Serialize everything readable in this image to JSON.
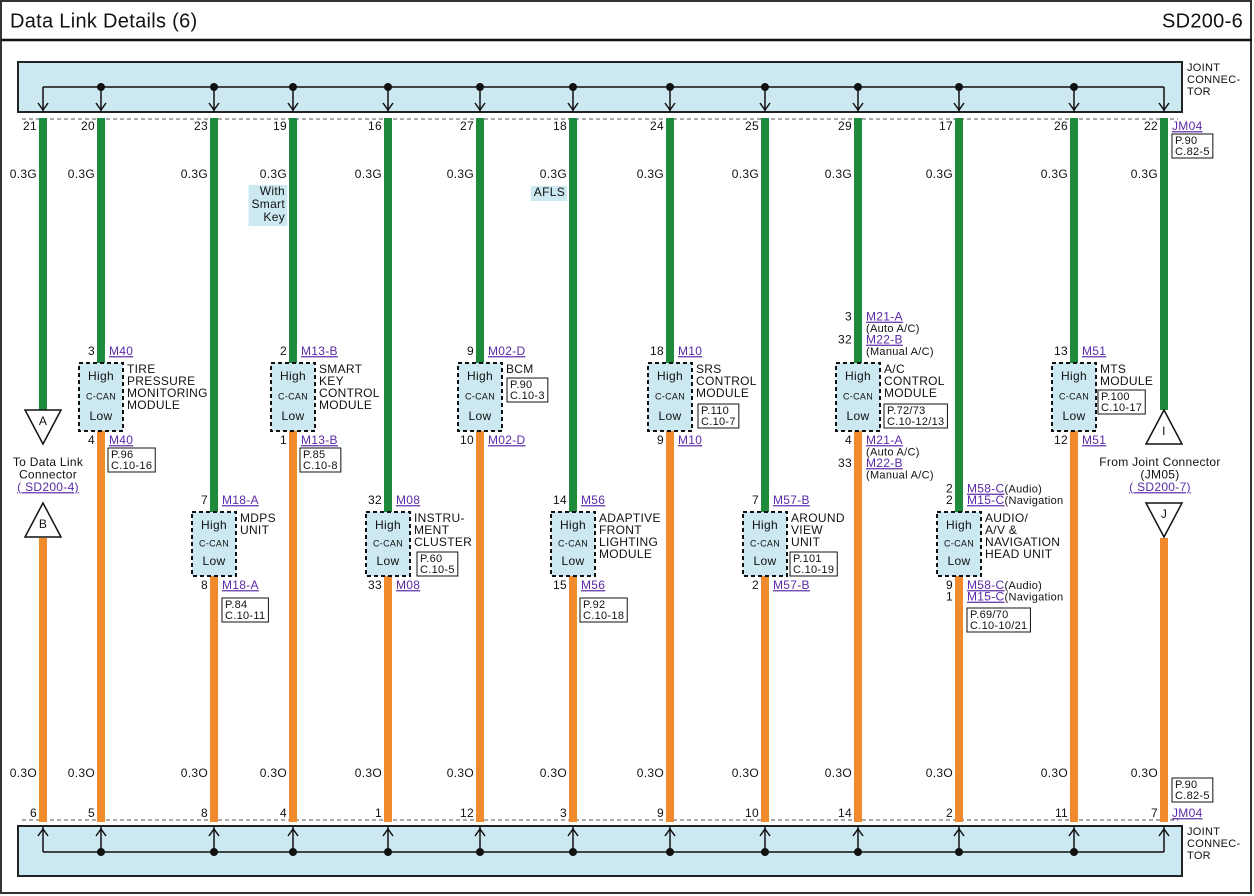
{
  "header": {
    "title": "Data Link Details (6)",
    "code": "SD200-6"
  },
  "joint_connector": {
    "top_label": [
      "JOINT",
      "CONNEC-",
      "TOR"
    ],
    "bottom_label": [
      "JOINT",
      "CONNEC-",
      "TOR"
    ]
  },
  "module_labels": {
    "high": "High",
    "can": "C-CAN",
    "low": "Low"
  },
  "columns": [
    {
      "top_pin": "21",
      "top_wire": "0.3G",
      "bottom_wire": "0.3O",
      "bottom_pin": "6",
      "end_top": {
        "letter": "A",
        "text": [
          "To Data Link",
          "Connector"
        ],
        "ref": "( SD200-4)"
      },
      "end_bottom": {
        "letter": "B"
      }
    },
    {
      "top_pin": "20",
      "top_wire": "0.3G",
      "bottom_wire": "0.3O",
      "bottom_pin": "5",
      "module": {
        "high": [
          {
            "pin": "3",
            "conn": "M40"
          }
        ],
        "low": [
          {
            "pin": "4",
            "conn": "M40"
          }
        ],
        "name": [
          "TIRE",
          "PRESSURE",
          "MONITORING",
          "MODULE"
        ],
        "ref": [
          "P.96",
          "C.10-16"
        ]
      }
    },
    {
      "top_pin": "23",
      "top_wire": "0.3G",
      "bottom_wire": "0.3O",
      "bottom_pin": "8",
      "module": {
        "high": [
          {
            "pin": "7",
            "conn": "M18-A"
          }
        ],
        "low": [
          {
            "pin": "8",
            "conn": "M18-A"
          }
        ],
        "name": [
          "MDPS",
          "UNIT"
        ],
        "ref": [
          "P.84",
          "C.10-11"
        ]
      }
    },
    {
      "top_pin": "19",
      "top_wire": "0.3G",
      "bottom_wire": "0.3O",
      "bottom_pin": "4",
      "note": [
        "With",
        "Smart",
        "Key"
      ],
      "module": {
        "high": [
          {
            "pin": "2",
            "conn": "M13-B"
          }
        ],
        "low": [
          {
            "pin": "1",
            "conn": "M13-B"
          }
        ],
        "name": [
          "SMART",
          "KEY",
          "CONTROL",
          "MODULE"
        ],
        "ref": [
          "P.85",
          "C.10-8"
        ]
      }
    },
    {
      "top_pin": "16",
      "top_wire": "0.3G",
      "bottom_wire": "0.3O",
      "bottom_pin": "1",
      "module": {
        "high": [
          {
            "pin": "32",
            "conn": "M08"
          }
        ],
        "low": [
          {
            "pin": "33",
            "conn": "M08"
          }
        ],
        "name": [
          "INSTRU-",
          "MENT",
          "CLUSTER"
        ],
        "ref": [
          "P.60",
          "C.10-5"
        ]
      }
    },
    {
      "top_pin": "27",
      "top_wire": "0.3G",
      "bottom_wire": "0.3O",
      "bottom_pin": "12",
      "module": {
        "high": [
          {
            "pin": "9",
            "conn": "M02-D"
          }
        ],
        "low": [
          {
            "pin": "10",
            "conn": "M02-D"
          }
        ],
        "name": [
          "BCM"
        ],
        "ref": [
          "P.90",
          "C.10-3"
        ]
      }
    },
    {
      "top_pin": "18",
      "top_wire": "0.3G",
      "bottom_wire": "0.3O",
      "bottom_pin": "3",
      "note": [
        "AFLS"
      ],
      "module": {
        "high": [
          {
            "pin": "14",
            "conn": "M56"
          }
        ],
        "low": [
          {
            "pin": "15",
            "conn": "M56"
          }
        ],
        "name": [
          "ADAPTIVE",
          "FRONT",
          "LIGHTING",
          "MODULE"
        ],
        "ref": [
          "P.92",
          "C.10-18"
        ]
      }
    },
    {
      "top_pin": "24",
      "top_wire": "0.3G",
      "bottom_wire": "0.3O",
      "bottom_pin": "9",
      "module": {
        "high": [
          {
            "pin": "18",
            "conn": "M10"
          }
        ],
        "low": [
          {
            "pin": "9",
            "conn": "M10"
          }
        ],
        "name": [
          "SRS",
          "CONTROL",
          "MODULE"
        ],
        "ref": [
          "P.110",
          "C.10-7"
        ]
      }
    },
    {
      "top_pin": "25",
      "top_wire": "0.3G",
      "bottom_wire": "0.3O",
      "bottom_pin": "10",
      "module": {
        "high": [
          {
            "pin": "7",
            "conn": "M57-B"
          }
        ],
        "low": [
          {
            "pin": "2",
            "conn": "M57-B"
          }
        ],
        "name": [
          "AROUND",
          "VIEW",
          "UNIT"
        ],
        "ref": [
          "P.101",
          "C.10-19"
        ]
      }
    },
    {
      "top_pin": "29",
      "top_wire": "0.3G",
      "bottom_wire": "0.3O",
      "bottom_pin": "14",
      "module": {
        "high": [
          {
            "pin": "3",
            "conn": "M21-A",
            "note": "(Auto A/C)"
          },
          {
            "pin": "32",
            "conn": "M22-B",
            "note": "(Manual A/C)"
          }
        ],
        "low": [
          {
            "pin": "4",
            "conn": "M21-A",
            "note": "(Auto A/C)"
          },
          {
            "pin": "33",
            "conn": "M22-B",
            "note": "(Manual A/C)"
          }
        ],
        "name": [
          "A/C",
          "CONTROL",
          "MODULE"
        ],
        "ref": [
          "P.72/73",
          "C.10-12/13"
        ]
      }
    },
    {
      "top_pin": "17",
      "top_wire": "0.3G",
      "bottom_wire": "0.3O",
      "bottom_pin": "2",
      "module": {
        "high": [
          {
            "pin": "2",
            "conn": "M58-C",
            "note": "(Audio)"
          },
          {
            "pin": "2",
            "conn": "M15-C",
            "note": "(Navigation"
          }
        ],
        "low": [
          {
            "pin": "9",
            "conn": "M58-C",
            "note": "(Audio)"
          },
          {
            "pin": "1",
            "conn": "M15-C",
            "note": "(Navigation"
          }
        ],
        "name": [
          "AUDIO/",
          "A/V &",
          "NAVIGATION",
          "HEAD UNIT"
        ],
        "ref": [
          "P.69/70",
          "C.10-10/21"
        ]
      }
    },
    {
      "top_pin": "26",
      "top_wire": "0.3G",
      "bottom_wire": "0.3O",
      "bottom_pin": "11",
      "module": {
        "high": [
          {
            "pin": "13",
            "conn": "M51"
          }
        ],
        "low": [
          {
            "pin": "12",
            "conn": "M51"
          }
        ],
        "name": [
          "MTS",
          "MODULE"
        ],
        "ref": [
          "P.100",
          "C.10-17"
        ]
      }
    },
    {
      "top_pin": "22",
      "top_wire": "0.3G",
      "bottom_wire": "0.3O",
      "bottom_pin": "7",
      "top_conn": "JM04",
      "top_ref": [
        "P.90",
        "C.82-5"
      ],
      "bottom_ref": [
        "P.90",
        "C.82-5"
      ],
      "bottom_conn": "JM04",
      "end_top": {
        "letter": "I",
        "text": [
          "From Joint Connector",
          "(JM05)"
        ],
        "ref": "( SD200-7)"
      },
      "end_bottom": {
        "letter": "J"
      }
    }
  ]
}
